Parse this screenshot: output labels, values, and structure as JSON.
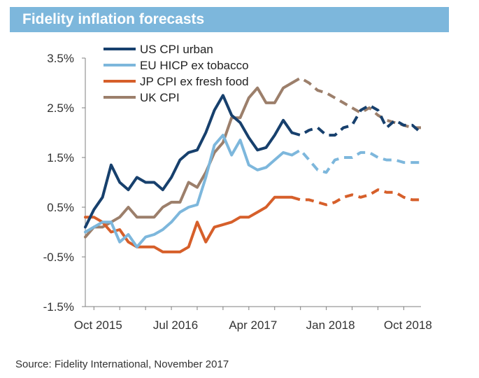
{
  "header": {
    "title": "Fidelity inflation forecasts"
  },
  "footer": {
    "source": "Source: Fidelity International, November 2017"
  },
  "chart_data": {
    "type": "line",
    "title": "Fidelity inflation forecasts",
    "xlabel": "",
    "ylabel": "",
    "x_tick_labels": [
      "Oct 2015",
      "Jul 2016",
      "Apr 2017",
      "Jan 2018",
      "Oct 2018"
    ],
    "x_range_months": [
      "2015-09",
      "2018-12"
    ],
    "y_ticks": [
      -1.5,
      -0.5,
      0.5,
      1.5,
      2.5,
      3.5
    ],
    "y_tick_labels": [
      "-1.5%",
      "-0.5%",
      "0.5%",
      "1.5%",
      "2.5%",
      "3.5%"
    ],
    "ylim": [
      -1.5,
      3.5
    ],
    "grid": false,
    "legend_position": "top-left",
    "forecast_start": "2017-10",
    "series": [
      {
        "name": "US CPI urban",
        "color": "#17406d",
        "style_actual": "solid",
        "style_forecast": "dashed",
        "actual": [
          [
            "2015-09",
            0.1
          ],
          [
            "2015-10",
            0.45
          ],
          [
            "2015-11",
            0.7
          ],
          [
            "2015-12",
            1.35
          ],
          [
            "2016-01",
            1.0
          ],
          [
            "2016-02",
            0.85
          ],
          [
            "2016-03",
            1.1
          ],
          [
            "2016-04",
            1.0
          ],
          [
            "2016-05",
            1.0
          ],
          [
            "2016-06",
            0.85
          ],
          [
            "2016-07",
            1.1
          ],
          [
            "2016-08",
            1.45
          ],
          [
            "2016-09",
            1.6
          ],
          [
            "2016-10",
            1.65
          ],
          [
            "2016-11",
            2.0
          ],
          [
            "2016-12",
            2.45
          ],
          [
            "2017-01",
            2.75
          ],
          [
            "2017-02",
            2.35
          ],
          [
            "2017-03",
            2.2
          ],
          [
            "2017-04",
            1.9
          ],
          [
            "2017-05",
            1.65
          ],
          [
            "2017-06",
            1.7
          ],
          [
            "2017-07",
            1.95
          ],
          [
            "2017-08",
            2.25
          ],
          [
            "2017-09",
            2.0
          ]
        ],
        "forecast": [
          [
            "2017-10",
            1.95
          ],
          [
            "2017-11",
            2.05
          ],
          [
            "2017-12",
            2.1
          ],
          [
            "2018-01",
            1.95
          ],
          [
            "2018-02",
            1.95
          ],
          [
            "2018-03",
            2.1
          ],
          [
            "2018-04",
            2.15
          ],
          [
            "2018-05",
            2.45
          ],
          [
            "2018-06",
            2.55
          ],
          [
            "2018-07",
            2.45
          ],
          [
            "2018-08",
            2.1
          ],
          [
            "2018-09",
            2.25
          ],
          [
            "2018-10",
            2.15
          ],
          [
            "2018-11",
            2.15
          ],
          [
            "2018-12",
            2.0
          ]
        ]
      },
      {
        "name": "EU HICP ex tobacco",
        "color": "#7db7dc",
        "style_actual": "solid",
        "style_forecast": "dashed",
        "actual": [
          [
            "2015-09",
            0.0
          ],
          [
            "2015-10",
            0.1
          ],
          [
            "2015-11",
            0.2
          ],
          [
            "2015-12",
            0.2
          ],
          [
            "2016-01",
            -0.2
          ],
          [
            "2016-02",
            -0.05
          ],
          [
            "2016-03",
            -0.3
          ],
          [
            "2016-04",
            -0.1
          ],
          [
            "2016-05",
            -0.05
          ],
          [
            "2016-06",
            0.05
          ],
          [
            "2016-07",
            0.2
          ],
          [
            "2016-08",
            0.4
          ],
          [
            "2016-09",
            0.5
          ],
          [
            "2016-10",
            0.55
          ],
          [
            "2016-11",
            1.1
          ],
          [
            "2016-12",
            1.75
          ],
          [
            "2017-01",
            1.95
          ],
          [
            "2017-02",
            1.55
          ],
          [
            "2017-03",
            1.85
          ],
          [
            "2017-04",
            1.35
          ],
          [
            "2017-05",
            1.25
          ],
          [
            "2017-06",
            1.3
          ],
          [
            "2017-07",
            1.45
          ],
          [
            "2017-08",
            1.6
          ],
          [
            "2017-09",
            1.55
          ]
        ],
        "forecast": [
          [
            "2017-10",
            1.65
          ],
          [
            "2017-11",
            1.45
          ],
          [
            "2017-12",
            1.25
          ],
          [
            "2018-01",
            1.2
          ],
          [
            "2018-02",
            1.45
          ],
          [
            "2018-03",
            1.5
          ],
          [
            "2018-04",
            1.5
          ],
          [
            "2018-05",
            1.6
          ],
          [
            "2018-06",
            1.6
          ],
          [
            "2018-07",
            1.5
          ],
          [
            "2018-08",
            1.45
          ],
          [
            "2018-09",
            1.45
          ],
          [
            "2018-10",
            1.4
          ],
          [
            "2018-11",
            1.4
          ],
          [
            "2018-12",
            1.4
          ]
        ]
      },
      {
        "name": "JP CPI ex fresh food",
        "color": "#d65f2a",
        "style_actual": "solid",
        "style_forecast": "dashed",
        "actual": [
          [
            "2015-09",
            0.3
          ],
          [
            "2015-10",
            0.3
          ],
          [
            "2015-11",
            0.2
          ],
          [
            "2015-12",
            0.0
          ],
          [
            "2016-01",
            0.05
          ],
          [
            "2016-02",
            -0.2
          ],
          [
            "2016-03",
            -0.3
          ],
          [
            "2016-04",
            -0.3
          ],
          [
            "2016-05",
            -0.3
          ],
          [
            "2016-06",
            -0.4
          ],
          [
            "2016-07",
            -0.4
          ],
          [
            "2016-08",
            -0.4
          ],
          [
            "2016-09",
            -0.3
          ],
          [
            "2016-10",
            0.2
          ],
          [
            "2016-11",
            -0.2
          ],
          [
            "2016-12",
            0.1
          ],
          [
            "2017-01",
            0.15
          ],
          [
            "2017-02",
            0.2
          ],
          [
            "2017-03",
            0.3
          ],
          [
            "2017-04",
            0.3
          ],
          [
            "2017-05",
            0.4
          ],
          [
            "2017-06",
            0.5
          ],
          [
            "2017-07",
            0.7
          ],
          [
            "2017-08",
            0.7
          ],
          [
            "2017-09",
            0.7
          ]
        ],
        "forecast": [
          [
            "2017-10",
            0.65
          ],
          [
            "2017-11",
            0.65
          ],
          [
            "2017-12",
            0.6
          ],
          [
            "2018-01",
            0.55
          ],
          [
            "2018-02",
            0.6
          ],
          [
            "2018-03",
            0.7
          ],
          [
            "2018-04",
            0.75
          ],
          [
            "2018-05",
            0.7
          ],
          [
            "2018-06",
            0.75
          ],
          [
            "2018-07",
            0.85
          ],
          [
            "2018-08",
            0.8
          ],
          [
            "2018-09",
            0.8
          ],
          [
            "2018-10",
            0.7
          ],
          [
            "2018-11",
            0.65
          ],
          [
            "2018-12",
            0.65
          ]
        ]
      },
      {
        "name": "UK CPI",
        "color": "#9c7f6b",
        "style_actual": "solid",
        "style_forecast": "dashed",
        "actual": [
          [
            "2015-09",
            -0.1
          ],
          [
            "2015-10",
            0.1
          ],
          [
            "2015-11",
            0.1
          ],
          [
            "2015-12",
            0.2
          ],
          [
            "2016-01",
            0.3
          ],
          [
            "2016-02",
            0.5
          ],
          [
            "2016-03",
            0.3
          ],
          [
            "2016-04",
            0.3
          ],
          [
            "2016-05",
            0.3
          ],
          [
            "2016-06",
            0.5
          ],
          [
            "2016-07",
            0.6
          ],
          [
            "2016-08",
            0.6
          ],
          [
            "2016-09",
            1.0
          ],
          [
            "2016-10",
            0.9
          ],
          [
            "2016-11",
            1.2
          ],
          [
            "2016-12",
            1.6
          ],
          [
            "2017-01",
            1.8
          ],
          [
            "2017-02",
            2.3
          ],
          [
            "2017-03",
            2.3
          ],
          [
            "2017-04",
            2.7
          ],
          [
            "2017-05",
            2.9
          ],
          [
            "2017-06",
            2.6
          ],
          [
            "2017-07",
            2.6
          ],
          [
            "2017-08",
            2.9
          ],
          [
            "2017-09",
            3.0
          ]
        ],
        "forecast": [
          [
            "2017-10",
            3.1
          ],
          [
            "2017-11",
            3.0
          ],
          [
            "2017-12",
            2.85
          ],
          [
            "2018-01",
            2.8
          ],
          [
            "2018-02",
            2.7
          ],
          [
            "2018-03",
            2.6
          ],
          [
            "2018-04",
            2.5
          ],
          [
            "2018-05",
            2.4
          ],
          [
            "2018-06",
            2.5
          ],
          [
            "2018-07",
            2.35
          ],
          [
            "2018-08",
            2.25
          ],
          [
            "2018-09",
            2.2
          ],
          [
            "2018-10",
            2.15
          ],
          [
            "2018-11",
            2.1
          ],
          [
            "2018-12",
            2.1
          ]
        ]
      }
    ]
  }
}
